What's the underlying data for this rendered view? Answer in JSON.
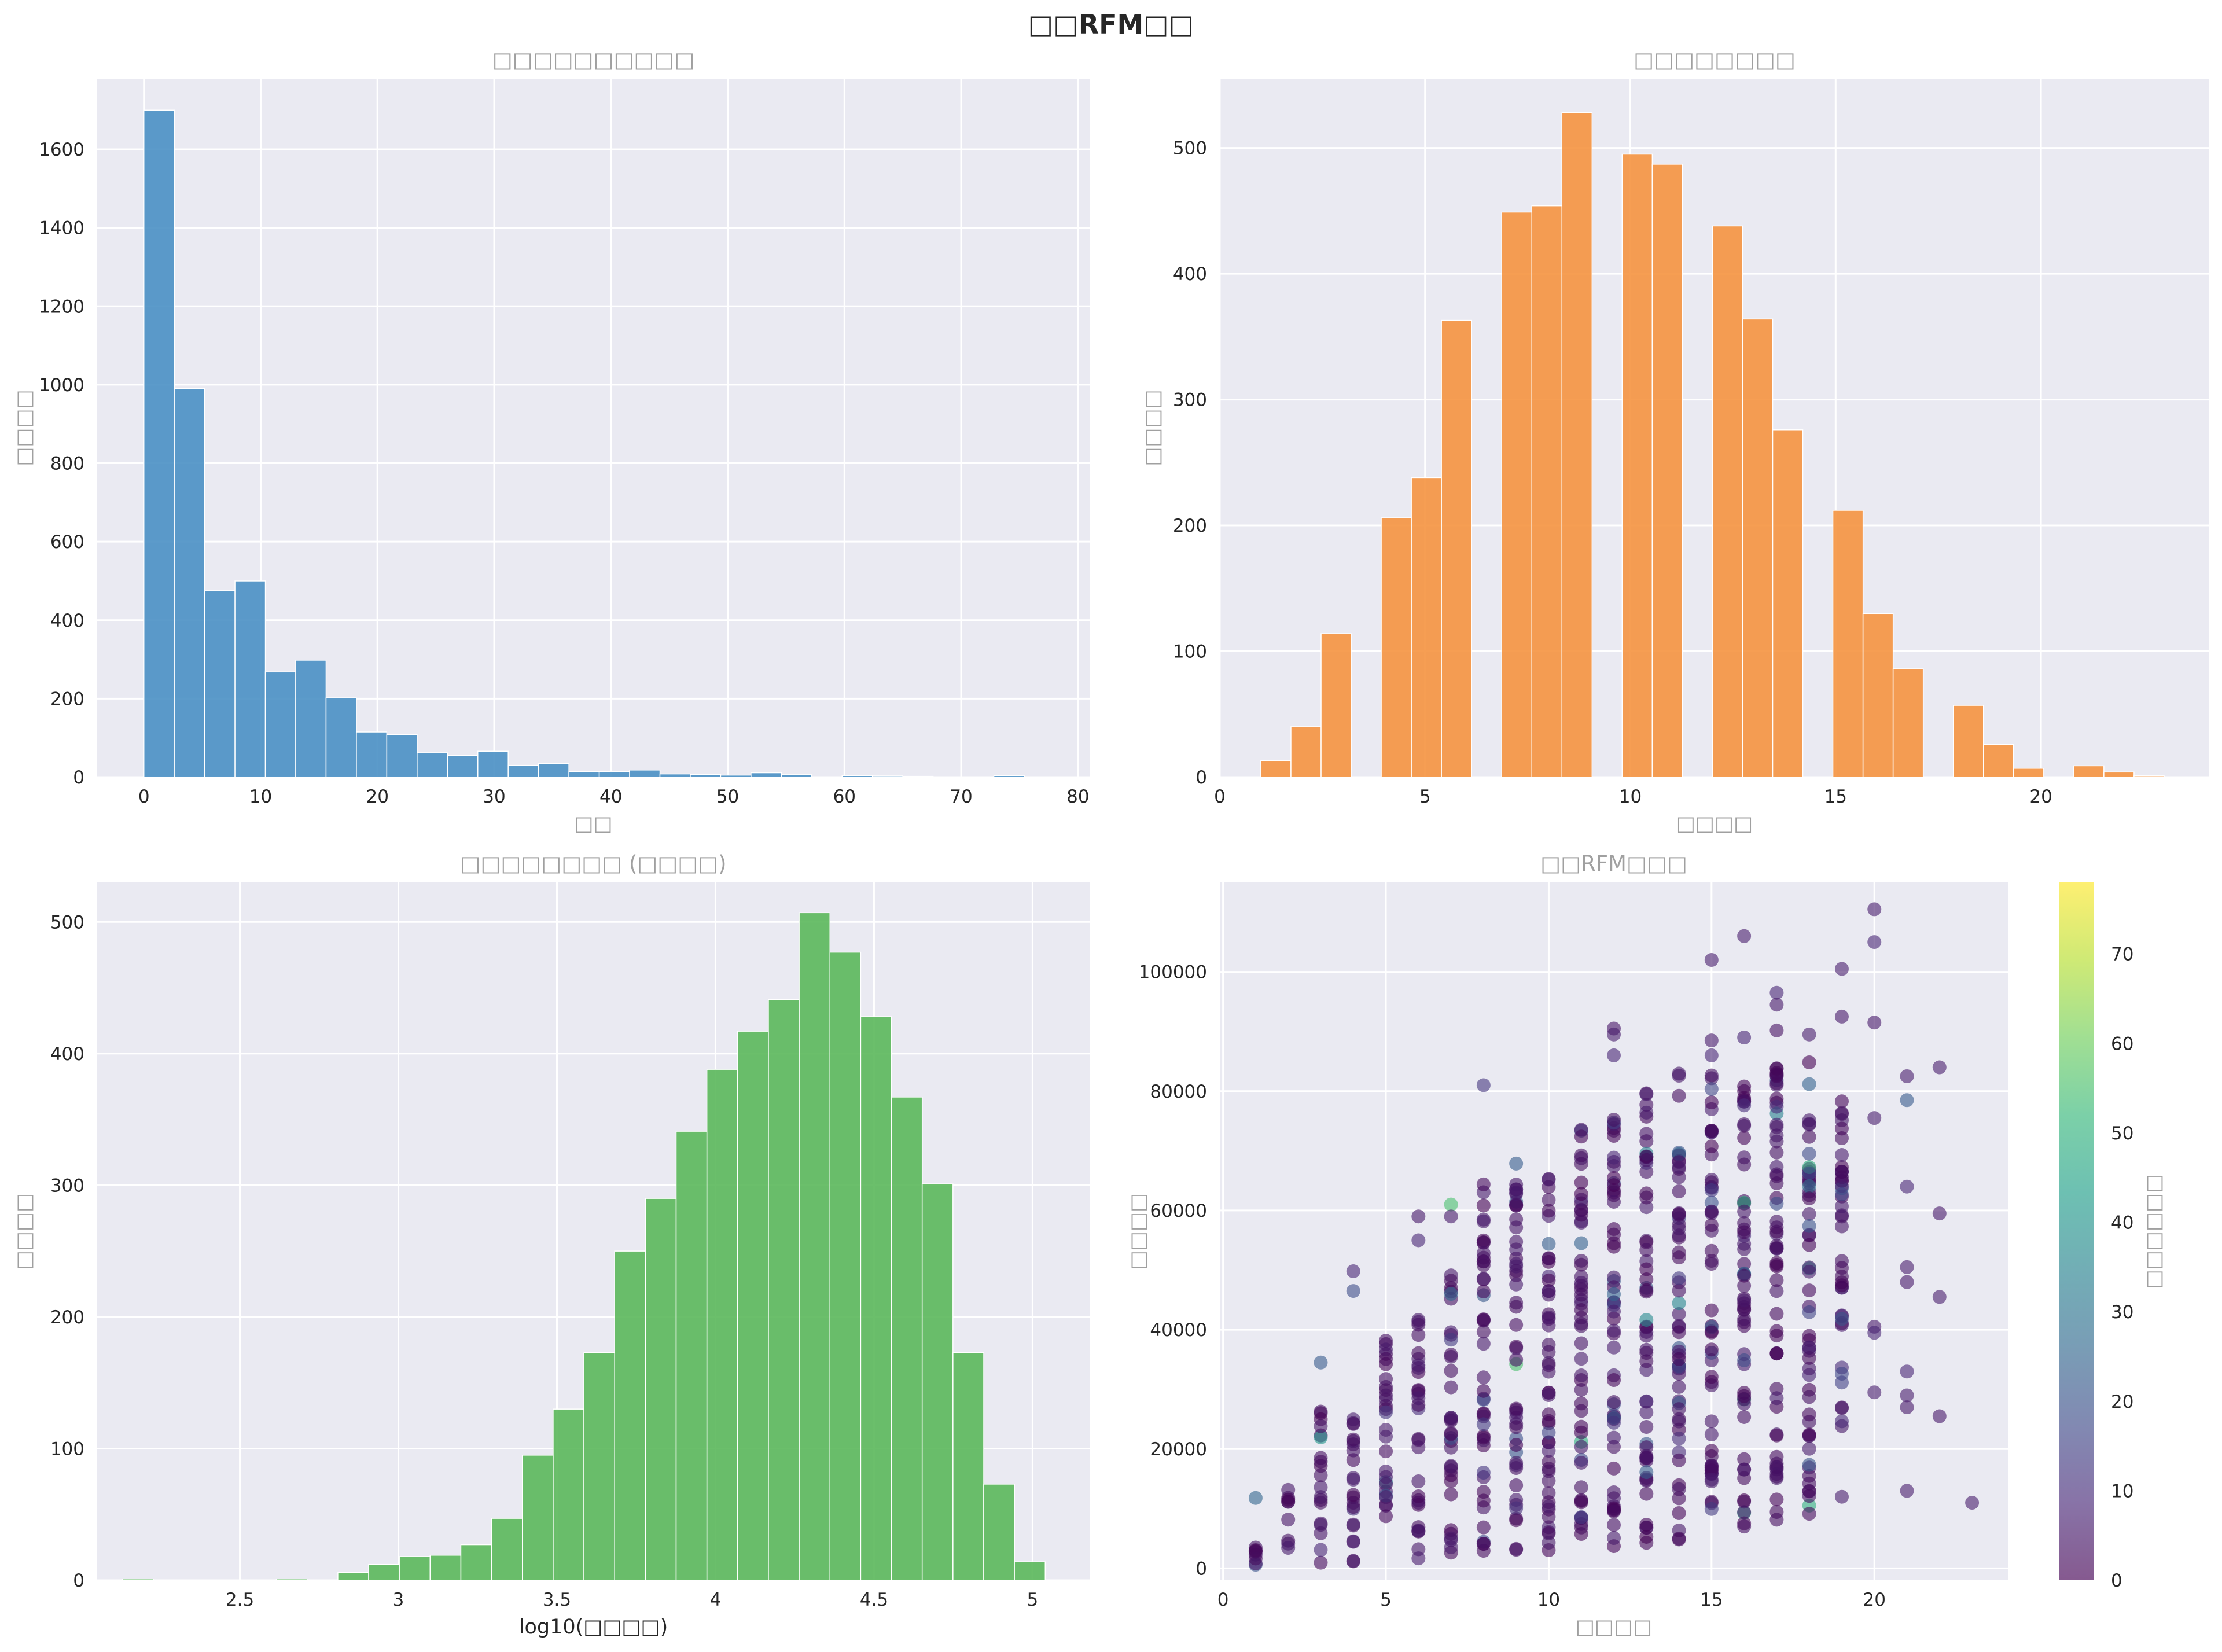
{
  "figure": {
    "suptitle": "□□RFM□□"
  },
  "chart_data": [
    {
      "type": "bar",
      "title": "□□□□□□□□□□",
      "xlabel": "□□",
      "ylabel": "□□□□",
      "xlim": [
        -4,
        81
      ],
      "ylim": [
        0,
        1780
      ],
      "xticks": [
        0,
        10,
        20,
        30,
        40,
        50,
        60,
        70,
        80
      ],
      "yticks": [
        0,
        200,
        400,
        600,
        800,
        1000,
        1200,
        1400,
        1600
      ],
      "grid": true,
      "color": "#4a90c4",
      "bin_edges": [
        0,
        2.6,
        5.2,
        7.8,
        10.4,
        13.0,
        15.6,
        18.2,
        20.8,
        23.4,
        26.0,
        28.6,
        31.2,
        33.8,
        36.4,
        39.0,
        41.6,
        44.2,
        46.8,
        49.4,
        52.0,
        54.6,
        57.2,
        59.8,
        62.4,
        65.0,
        67.6,
        70.2,
        72.8,
        75.4,
        78.0
      ],
      "values": [
        1700,
        990,
        475,
        500,
        268,
        298,
        202,
        115,
        108,
        62,
        55,
        66,
        30,
        35,
        14,
        14,
        18,
        8,
        7,
        5,
        11,
        6,
        0,
        4,
        3,
        2,
        0,
        0,
        4,
        0
      ]
    },
    {
      "type": "bar",
      "title": "□□□□□□□□",
      "xlabel": "□□□□",
      "ylabel": "□□□□",
      "xlim": [
        0,
        24.1
      ],
      "ylim": [
        0,
        555
      ],
      "xticks": [
        0,
        5,
        10,
        15,
        20
      ],
      "yticks": [
        0,
        100,
        200,
        300,
        400,
        500
      ],
      "grid": true,
      "color": "#f59440",
      "bin_edges": [
        1,
        1.733,
        2.467,
        3.2,
        3.933,
        4.667,
        5.4,
        6.133,
        6.867,
        7.6,
        8.333,
        9.067,
        9.8,
        10.533,
        11.267,
        12.0,
        12.733,
        13.467,
        14.2,
        14.933,
        15.667,
        16.4,
        17.133,
        17.867,
        18.6,
        19.333,
        20.067,
        20.8,
        21.533,
        22.267,
        23.0
      ],
      "values": [
        13,
        40,
        114,
        0,
        206,
        238,
        363,
        0,
        449,
        454,
        528,
        0,
        495,
        487,
        0,
        438,
        364,
        276,
        0,
        212,
        130,
        86,
        0,
        57,
        26,
        7,
        0,
        9,
        4,
        1
      ]
    },
    {
      "type": "bar",
      "title": "□□□□□□□□ (□□□□)",
      "xlabel": "log10(□□□□)",
      "ylabel": "□□□□",
      "xlim": [
        2.05,
        5.18
      ],
      "ylim": [
        0,
        530
      ],
      "xticks": [
        2.5,
        3.0,
        3.5,
        4.0,
        4.5,
        5.0
      ],
      "yticks": [
        0,
        100,
        200,
        300,
        400,
        500
      ],
      "grid": true,
      "color": "#5bb85b",
      "bin_edges": [
        2.13,
        2.227,
        2.324,
        2.421,
        2.518,
        2.615,
        2.712,
        2.809,
        2.906,
        3.003,
        3.1,
        3.197,
        3.294,
        3.391,
        3.488,
        3.585,
        3.682,
        3.779,
        3.876,
        3.973,
        4.07,
        4.167,
        4.264,
        4.361,
        4.458,
        4.555,
        4.652,
        4.749,
        4.846,
        4.943,
        5.04
      ],
      "values": [
        1,
        0,
        0,
        0,
        0,
        1,
        0,
        6,
        12,
        18,
        19,
        27,
        47,
        95,
        130,
        173,
        250,
        290,
        341,
        388,
        417,
        441,
        507,
        477,
        428,
        367,
        301,
        173,
        73,
        14
      ]
    },
    {
      "type": "scatter",
      "title": "□□RFM□□□",
      "xlabel": "□□□□",
      "ylabel": "□□□□",
      "colorbar_label": "□□□□□□",
      "colormap": "viridis",
      "alpha": 0.6,
      "xlim": [
        -0.1,
        24.1
      ],
      "ylim": [
        -2000,
        115000
      ],
      "xticks": [
        0,
        5,
        10,
        15,
        20
      ],
      "yticks": [
        0,
        20000,
        40000,
        60000,
        80000,
        100000
      ],
      "clim": [
        0,
        78
      ],
      "cticks": [
        0,
        10,
        20,
        30,
        40,
        50,
        60,
        70
      ],
      "grid": true,
      "column_ranges": [
        {
          "x": 1,
          "min": 0,
          "max": 3500
        },
        {
          "x": 2,
          "min": 500,
          "max": 13500
        },
        {
          "x": 3,
          "min": 800,
          "max": 27500
        },
        {
          "x": 4,
          "min": 1000,
          "max": 30000
        },
        {
          "x": 5,
          "min": 1200,
          "max": 38500
        },
        {
          "x": 6,
          "min": 1500,
          "max": 42000
        },
        {
          "x": 7,
          "min": 2000,
          "max": 50000
        },
        {
          "x": 8,
          "min": 2500,
          "max": 64500
        },
        {
          "x": 9,
          "min": 2500,
          "max": 68500
        },
        {
          "x": 10,
          "min": 3000,
          "max": 69500
        },
        {
          "x": 11,
          "min": 3000,
          "max": 75500
        },
        {
          "x": 12,
          "min": 3500,
          "max": 79000
        },
        {
          "x": 13,
          "min": 4000,
          "max": 82000
        },
        {
          "x": 14,
          "min": 4500,
          "max": 83000
        },
        {
          "x": 15,
          "min": 6500,
          "max": 83000
        },
        {
          "x": 16,
          "min": 5500,
          "max": 83000
        },
        {
          "x": 17,
          "min": 8000,
          "max": 92000
        },
        {
          "x": 18,
          "min": 8500,
          "max": 85000
        },
        {
          "x": 19,
          "min": 22000,
          "max": 79000
        }
      ],
      "outliers": [
        {
          "x": 1,
          "y": 11800,
          "c": 25
        },
        {
          "x": 3,
          "y": 34500,
          "c": 22
        },
        {
          "x": 4,
          "y": 46500,
          "c": 18
        },
        {
          "x": 4,
          "y": 49800,
          "c": 8
        },
        {
          "x": 6,
          "y": 55000,
          "c": 8
        },
        {
          "x": 6,
          "y": 59000,
          "c": 5
        },
        {
          "x": 7,
          "y": 61000,
          "c": 55
        },
        {
          "x": 7,
          "y": 59000,
          "c": 5
        },
        {
          "x": 8,
          "y": 81000,
          "c": 12
        },
        {
          "x": 12,
          "y": 86000,
          "c": 8
        },
        {
          "x": 12,
          "y": 90500,
          "c": 4
        },
        {
          "x": 12,
          "y": 89500,
          "c": 6
        },
        {
          "x": 15,
          "y": 102000,
          "c": 6
        },
        {
          "x": 15,
          "y": 88500,
          "c": 5
        },
        {
          "x": 15,
          "y": 86000,
          "c": 8
        },
        {
          "x": 16,
          "y": 106000,
          "c": 6
        },
        {
          "x": 16,
          "y": 89000,
          "c": 8
        },
        {
          "x": 17,
          "y": 96500,
          "c": 8
        },
        {
          "x": 17,
          "y": 94500,
          "c": 5
        },
        {
          "x": 18,
          "y": 89500,
          "c": 6
        },
        {
          "x": 19,
          "y": 100500,
          "c": 6
        },
        {
          "x": 19,
          "y": 92500,
          "c": 5
        },
        {
          "x": 19,
          "y": 12000,
          "c": 6
        },
        {
          "x": 20,
          "y": 110500,
          "c": 6
        },
        {
          "x": 20,
          "y": 105000,
          "c": 8
        },
        {
          "x": 20,
          "y": 91500,
          "c": 5
        },
        {
          "x": 20,
          "y": 75500,
          "c": 6
        },
        {
          "x": 20,
          "y": 40500,
          "c": 5
        },
        {
          "x": 20,
          "y": 39500,
          "c": 8
        },
        {
          "x": 20,
          "y": 29500,
          "c": 6
        },
        {
          "x": 21,
          "y": 82500,
          "c": 6
        },
        {
          "x": 21,
          "y": 78500,
          "c": 22
        },
        {
          "x": 21,
          "y": 64000,
          "c": 8
        },
        {
          "x": 21,
          "y": 50500,
          "c": 6
        },
        {
          "x": 21,
          "y": 48000,
          "c": 5
        },
        {
          "x": 21,
          "y": 33000,
          "c": 8
        },
        {
          "x": 21,
          "y": 29000,
          "c": 6
        },
        {
          "x": 21,
          "y": 27000,
          "c": 5
        },
        {
          "x": 21,
          "y": 13000,
          "c": 6
        },
        {
          "x": 22,
          "y": 84000,
          "c": 6
        },
        {
          "x": 22,
          "y": 59500,
          "c": 5
        },
        {
          "x": 22,
          "y": 45500,
          "c": 6
        },
        {
          "x": 22,
          "y": 25500,
          "c": 5
        },
        {
          "x": 23,
          "y": 11000,
          "c": 6
        }
      ]
    }
  ]
}
